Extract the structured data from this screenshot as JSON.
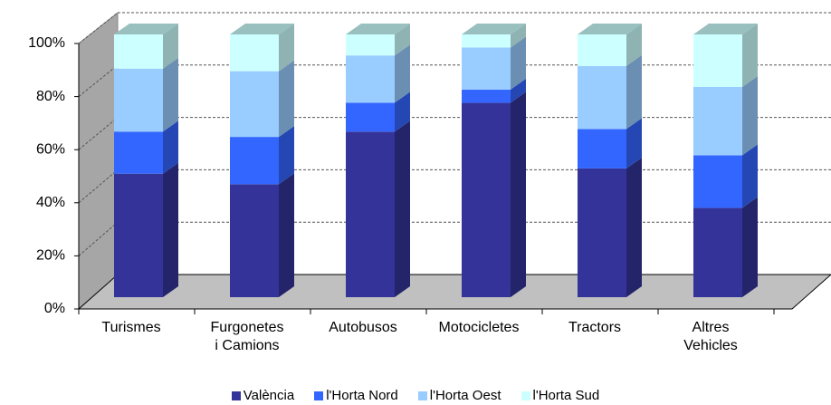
{
  "chart_data": {
    "type": "bar",
    "categories": [
      "Turismes",
      "Furgonetes\ni Camions",
      "Autobusos",
      "Motocicletes",
      "Tractors",
      "Altres\nVehicles"
    ],
    "series": [
      {
        "name": "València",
        "color": "#333399",
        "values": [
          47,
          43,
          63,
          74,
          49,
          34
        ]
      },
      {
        "name": "l'Horta Nord",
        "color": "#3366ff",
        "values": [
          16,
          18,
          11,
          5,
          15,
          20
        ]
      },
      {
        "name": "l'Horta Oest",
        "color": "#99ccff",
        "values": [
          24,
          25,
          18,
          16,
          24,
          26
        ]
      },
      {
        "name": "l'Horta Sud",
        "color": "#ccffff",
        "values": [
          13,
          14,
          8,
          5,
          12,
          20
        ]
      }
    ],
    "stacked": true,
    "ylim": [
      0,
      100
    ],
    "yticks": [
      {
        "value": 0,
        "label": "0%"
      },
      {
        "value": 20,
        "label": "20%"
      },
      {
        "value": 40,
        "label": "40%"
      },
      {
        "value": 60,
        "label": "60%"
      },
      {
        "value": 80,
        "label": "80%"
      },
      {
        "value": 100,
        "label": "100%"
      }
    ],
    "grid": true
  }
}
